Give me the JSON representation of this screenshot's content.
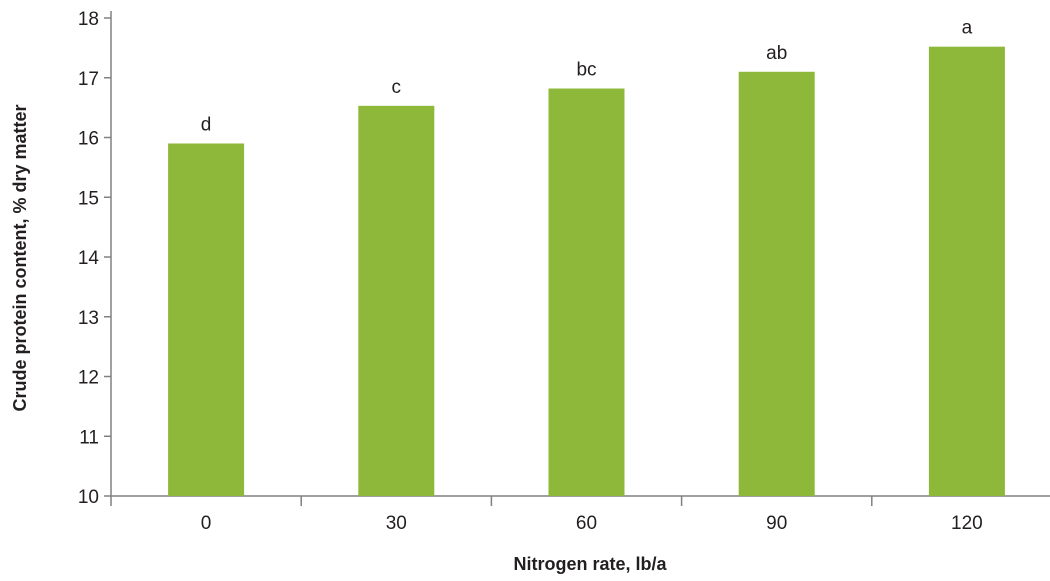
{
  "chart_data": {
    "type": "bar",
    "categories": [
      "0",
      "30",
      "60",
      "90",
      "120"
    ],
    "values": [
      15.9,
      16.53,
      16.82,
      17.1,
      17.52
    ],
    "bar_labels": [
      "d",
      "c",
      "bc",
      "ab",
      "a"
    ],
    "xlabel": "Nitrogen rate, lb/a",
    "ylabel": "Crude protein content, % dry matter",
    "ylim": [
      10,
      18
    ],
    "yticks": [
      "10",
      "11",
      "12",
      "13",
      "14",
      "15",
      "16",
      "17",
      "18"
    ],
    "grid": false,
    "bar_color": "#8db83a"
  }
}
